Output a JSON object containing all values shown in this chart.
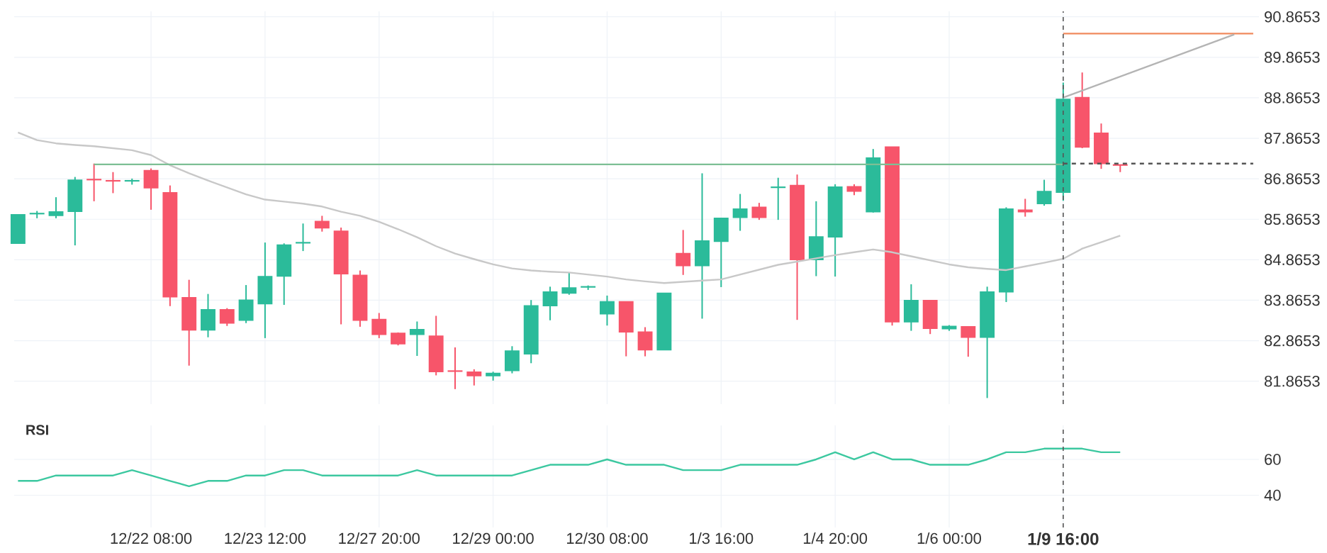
{
  "chart_data": [
    {
      "type": "candlestick",
      "tick_labels": "y",
      "grid": true,
      "categories": [
        null,
        null,
        null,
        null,
        null,
        null,
        null,
        "12/22 08:00",
        null,
        null,
        null,
        null,
        null,
        "12/23 12:00",
        null,
        null,
        null,
        null,
        null,
        "12/27 20:00",
        null,
        null,
        null,
        null,
        null,
        "12/29 00:00",
        null,
        null,
        null,
        null,
        null,
        "12/30 08:00",
        null,
        null,
        null,
        null,
        null,
        "1/3 16:00",
        null,
        null,
        null,
        null,
        null,
        "1/4 20:00",
        null,
        null,
        null,
        null,
        null,
        "1/6 00:00",
        null,
        null,
        null,
        null,
        null,
        "1/9 16:00",
        null,
        null,
        null,
        null,
        null,
        null,
        null,
        null,
        null,
        null
      ],
      "ylim": [
        81.3,
        91.0
      ],
      "yticks": [
        81.8653,
        82.8653,
        83.8653,
        84.8653,
        85.8653,
        86.8653,
        87.8653,
        88.8653,
        89.8653,
        90.8653
      ],
      "ohlc": [
        [
          85.27,
          85.98,
          85.27,
          85.98
        ],
        [
          86.0,
          86.07,
          85.89,
          86.01
        ],
        [
          85.96,
          86.41,
          85.89,
          86.05
        ],
        [
          86.06,
          86.91,
          85.22,
          86.83
        ],
        [
          86.85,
          87.24,
          86.31,
          86.84
        ],
        [
          86.82,
          87.03,
          86.51,
          86.81
        ],
        [
          86.81,
          86.87,
          86.72,
          86.82
        ],
        [
          87.07,
          87.12,
          86.1,
          86.64
        ],
        [
          86.52,
          86.7,
          83.72,
          83.95
        ],
        [
          83.93,
          84.37,
          82.25,
          83.13
        ],
        [
          83.13,
          84.02,
          82.95,
          83.63
        ],
        [
          83.63,
          83.67,
          83.23,
          83.3
        ],
        [
          83.37,
          84.24,
          83.3,
          83.87
        ],
        [
          83.78,
          85.29,
          82.93,
          84.45
        ],
        [
          84.46,
          85.27,
          83.75,
          85.23
        ],
        [
          85.28,
          85.76,
          85.08,
          85.29
        ],
        [
          85.81,
          85.95,
          85.56,
          85.65
        ],
        [
          85.57,
          85.66,
          83.27,
          84.52
        ],
        [
          84.48,
          84.6,
          83.21,
          83.37
        ],
        [
          83.39,
          83.55,
          82.93,
          83.02
        ],
        [
          83.05,
          83.07,
          82.75,
          82.79
        ],
        [
          83.02,
          83.34,
          82.49,
          83.14
        ],
        [
          82.98,
          83.48,
          82.01,
          82.1
        ],
        [
          82.12,
          82.7,
          81.67,
          82.11
        ],
        [
          82.09,
          82.16,
          81.76,
          82.0
        ],
        [
          82.0,
          82.1,
          81.88,
          82.06
        ],
        [
          82.13,
          82.73,
          82.06,
          82.61
        ],
        [
          82.54,
          83.87,
          82.31,
          83.73
        ],
        [
          83.73,
          84.2,
          83.37,
          84.07
        ],
        [
          84.04,
          84.55,
          84.0,
          84.17
        ],
        [
          84.19,
          84.23,
          84.12,
          84.2
        ],
        [
          83.53,
          83.98,
          83.24,
          83.83
        ],
        [
          83.83,
          83.83,
          82.48,
          83.08
        ],
        [
          83.08,
          83.2,
          82.48,
          82.64
        ],
        [
          82.64,
          84.04,
          82.64,
          84.04
        ],
        [
          85.02,
          85.6,
          84.49,
          84.72
        ],
        [
          84.72,
          87.0,
          83.41,
          85.33
        ],
        [
          85.32,
          85.89,
          84.19,
          85.89
        ],
        [
          85.91,
          86.49,
          85.58,
          86.12
        ],
        [
          86.16,
          86.27,
          85.85,
          85.91
        ],
        [
          86.65,
          86.89,
          85.85,
          86.66
        ],
        [
          86.7,
          86.97,
          83.38,
          84.87
        ],
        [
          84.87,
          86.31,
          84.46,
          85.43
        ],
        [
          85.43,
          86.73,
          84.45,
          86.66
        ],
        [
          86.67,
          86.73,
          86.46,
          86.56
        ],
        [
          86.05,
          87.6,
          86.03,
          87.38
        ],
        [
          87.65,
          87.65,
          83.24,
          83.33
        ],
        [
          83.33,
          84.26,
          83.11,
          83.86
        ],
        [
          83.86,
          83.86,
          83.03,
          83.17
        ],
        [
          83.16,
          83.25,
          83.11,
          83.22
        ],
        [
          83.21,
          83.21,
          82.47,
          82.95
        ],
        [
          82.95,
          84.2,
          81.45,
          84.07
        ],
        [
          84.07,
          86.16,
          83.82,
          86.12
        ],
        [
          86.09,
          86.37,
          85.93,
          86.05
        ],
        [
          86.25,
          86.84,
          86.2,
          86.55
        ],
        [
          86.53,
          89.24,
          86.32,
          88.83
        ],
        [
          88.87,
          89.49,
          87.62,
          87.65
        ],
        [
          87.99,
          88.23,
          87.11,
          87.24
        ],
        [
          87.21,
          87.21,
          87.03,
          87.2
        ],
        null,
        null,
        null,
        null,
        null,
        null,
        null
      ],
      "colors": [
        "#2bbb9a",
        "#2bbb9a",
        "#2bbb9a",
        "#2bbb9a",
        "#f7556a",
        "#f7556a",
        "#2bbb9a",
        "#f7556a",
        "#f7556a",
        "#f7556a",
        "#2bbb9a",
        "#f7556a",
        "#2bbb9a",
        "#2bbb9a",
        "#2bbb9a",
        "#2bbb9a",
        "#f7556a",
        "#f7556a",
        "#f7556a",
        "#f7556a",
        "#f7556a",
        "#2bbb9a",
        "#f7556a",
        "#f7556a",
        "#f7556a",
        "#2bbb9a",
        "#2bbb9a",
        "#2bbb9a",
        "#2bbb9a",
        "#2bbb9a",
        "#2bbb9a",
        "#2bbb9a",
        "#f7556a",
        "#f7556a",
        "#2bbb9a",
        "#f7556a",
        "#2bbb9a",
        "#2bbb9a",
        "#2bbb9a",
        "#f7556a",
        "#2bbb9a",
        "#f7556a",
        "#2bbb9a",
        "#2bbb9a",
        "#f7556a",
        "#2bbb9a",
        "#f7556a",
        "#2bbb9a",
        "#f7556a",
        "#2bbb9a",
        "#f7556a",
        "#2bbb9a",
        "#2bbb9a",
        "#f7556a",
        "#2bbb9a",
        "#2bbb9a",
        "#f7556a",
        "#f7556a",
        "#f7556a",
        null,
        null,
        null,
        null,
        null,
        null,
        null
      ],
      "series": [
        {
          "type": "line",
          "color": "#c8c8c8",
          "values": [
            88.01,
            87.82,
            87.74,
            87.7,
            87.67,
            87.62,
            87.57,
            87.45,
            87.2,
            87.0,
            86.82,
            86.65,
            86.48,
            86.35,
            86.3,
            86.25,
            86.18,
            86.05,
            85.95,
            85.8,
            85.62,
            85.42,
            85.2,
            85.02,
            84.88,
            84.75,
            84.65,
            84.6,
            84.57,
            84.55,
            84.5,
            84.45,
            84.38,
            84.33,
            84.29,
            84.32,
            84.35,
            84.38,
            84.5,
            84.62,
            84.74,
            84.82,
            84.9,
            84.98,
            85.05,
            85.12,
            85.05,
            84.95,
            84.85,
            84.75,
            84.68,
            84.64,
            84.61,
            84.7,
            84.79,
            84.89,
            85.14,
            85.3,
            85.46,
            null,
            null,
            null,
            null,
            null,
            null,
            null
          ]
        },
        {
          "type": "line",
          "color": "#7dbf95",
          "values": [
            null,
            null,
            null,
            null,
            87.22,
            87.22,
            87.22,
            87.22,
            87.22,
            87.22,
            87.22,
            87.22,
            87.22,
            87.22,
            87.22,
            87.22,
            87.22,
            87.22,
            87.22,
            87.22,
            87.22,
            87.22,
            87.22,
            87.22,
            87.22,
            87.22,
            87.22,
            87.22,
            87.22,
            87.22,
            87.22,
            87.22,
            87.22,
            87.22,
            87.22,
            87.22,
            87.22,
            87.22,
            87.22,
            87.22,
            87.22,
            87.22,
            87.22,
            87.22,
            87.22,
            87.22,
            87.22,
            87.22,
            87.22,
            87.22,
            87.22,
            87.22,
            87.22,
            87.22,
            87.22,
            87.22,
            null,
            null,
            null,
            null,
            null,
            null,
            null,
            null,
            null,
            null
          ]
        },
        {
          "type": "line",
          "color": "#555555",
          "line_style": "dashed",
          "values": [
            null,
            null,
            null,
            null,
            null,
            null,
            null,
            null,
            null,
            null,
            null,
            null,
            null,
            null,
            null,
            null,
            null,
            null,
            null,
            null,
            null,
            null,
            null,
            null,
            null,
            null,
            null,
            null,
            null,
            null,
            null,
            null,
            null,
            null,
            null,
            null,
            null,
            null,
            null,
            null,
            null,
            null,
            null,
            null,
            null,
            null,
            null,
            null,
            null,
            null,
            null,
            null,
            null,
            null,
            null,
            87.24,
            87.24,
            87.24,
            87.24,
            87.24,
            87.24,
            87.24,
            87.24,
            87.24,
            87.24,
            87.24
          ]
        },
        {
          "type": "line",
          "color": "#f08a5d",
          "values": [
            null,
            null,
            null,
            null,
            null,
            null,
            null,
            null,
            null,
            null,
            null,
            null,
            null,
            null,
            null,
            null,
            null,
            null,
            null,
            null,
            null,
            null,
            null,
            null,
            null,
            null,
            null,
            null,
            null,
            null,
            null,
            null,
            null,
            null,
            null,
            null,
            null,
            null,
            null,
            null,
            null,
            null,
            null,
            null,
            null,
            null,
            null,
            null,
            null,
            null,
            null,
            null,
            null,
            null,
            null,
            90.45,
            90.45,
            90.45,
            90.45,
            90.45,
            90.45,
            90.45,
            90.45,
            90.45,
            90.45,
            90.45
          ]
        },
        {
          "type": "line",
          "color": "#b4b4b4",
          "values": [
            null,
            null,
            null,
            null,
            null,
            null,
            null,
            null,
            null,
            null,
            null,
            null,
            null,
            null,
            null,
            null,
            null,
            null,
            null,
            null,
            null,
            null,
            null,
            null,
            null,
            null,
            null,
            null,
            null,
            null,
            null,
            null,
            null,
            null,
            null,
            null,
            null,
            null,
            null,
            null,
            null,
            null,
            null,
            null,
            null,
            null,
            null,
            null,
            null,
            null,
            null,
            null,
            null,
            null,
            null,
            88.87,
            null,
            null,
            null,
            null,
            null,
            null,
            null,
            null,
            90.43,
            null
          ]
        }
      ],
      "ref_lines": [
        {
          "axis": "x",
          "value": "1/9 16:00",
          "line_style": "dashed",
          "color": "#555555"
        }
      ]
    },
    {
      "type": "line",
      "title": "RSI",
      "grid": true,
      "color": "#3cc8a0",
      "categories": [
        null,
        null,
        null,
        null,
        null,
        null,
        null,
        "12/22 08:00",
        null,
        null,
        null,
        null,
        null,
        "12/23 12:00",
        null,
        null,
        null,
        null,
        null,
        "12/27 20:00",
        null,
        null,
        null,
        null,
        null,
        "12/29 00:00",
        null,
        null,
        null,
        null,
        null,
        "12/30 08:00",
        null,
        null,
        null,
        null,
        null,
        "1/3 16:00",
        null,
        null,
        null,
        null,
        null,
        "1/4 20:00",
        null,
        null,
        null,
        null,
        null,
        "1/6 00:00",
        null,
        null,
        null,
        null,
        null,
        "1/9 16:00",
        null,
        null,
        null,
        null,
        null,
        null,
        null,
        null,
        null,
        null
      ],
      "ylim": [
        22,
        79
      ],
      "yticks": [
        40,
        60
      ],
      "values": [
        48,
        48,
        51,
        51,
        51,
        51,
        54,
        51,
        48,
        45,
        48,
        48,
        51,
        51,
        54,
        54,
        51,
        51,
        51,
        51,
        51,
        54,
        51,
        51,
        51,
        51,
        51,
        54,
        57,
        57,
        57,
        60,
        57,
        57,
        57,
        54,
        54,
        54,
        57,
        57,
        57,
        57,
        60,
        64,
        60,
        64,
        60,
        60,
        57,
        57,
        57,
        60,
        64,
        64,
        66,
        66,
        66,
        64,
        64,
        null,
        null,
        null,
        null,
        null,
        null,
        null
      ],
      "ref_lines": [
        {
          "axis": "x",
          "value": "1/9 16:00",
          "line_style": "dashed",
          "color": "#555555"
        }
      ]
    }
  ]
}
